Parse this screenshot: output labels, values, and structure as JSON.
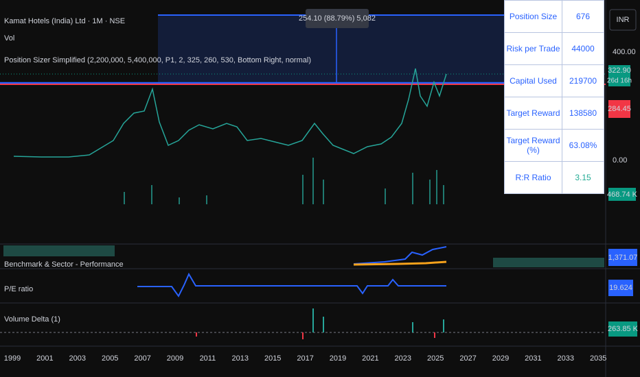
{
  "header": {
    "symbol": "Kamat Hotels (India) Ltd · 1M · NSE",
    "volume": "Vol",
    "indicator": "Position Sizer Simplified (2,200,000, 5,400,000, P1, 2, 325, 260, 530, Bottom Right, normal)"
  },
  "measure_label": "254.10 (88.79%) 5,082",
  "table": {
    "rows": [
      [
        "Position Size",
        "676"
      ],
      [
        "Risk per Trade",
        "44000"
      ],
      [
        "Capital Used",
        "219700"
      ],
      [
        "Target Reward",
        "138580"
      ],
      [
        "Target Reward (%)",
        "63.08%"
      ],
      [
        "R:R Ratio",
        "3.15"
      ]
    ]
  },
  "price_axis": {
    "currency": "INR",
    "top_label": "400.00",
    "last_price": "322.90",
    "countdown": "26d 16h",
    "stop_price": "284.45",
    "zero_label": "0.00",
    "volume_label": "468.74 K"
  },
  "panes": [
    {
      "title": "Benchmark & Sector - Performance",
      "value": "1,371.07"
    },
    {
      "title": "P/E ratio",
      "value": "19.624"
    },
    {
      "title": "Volume Delta (1)",
      "value": "263.85 K"
    }
  ],
  "x_axis": [
    "1999",
    "2001",
    "2003",
    "2005",
    "2007",
    "2009",
    "2011",
    "2013",
    "2015",
    "2017",
    "2019",
    "2021",
    "2023",
    "2025",
    "2027",
    "2029",
    "2031",
    "2033",
    "2035"
  ]
}
